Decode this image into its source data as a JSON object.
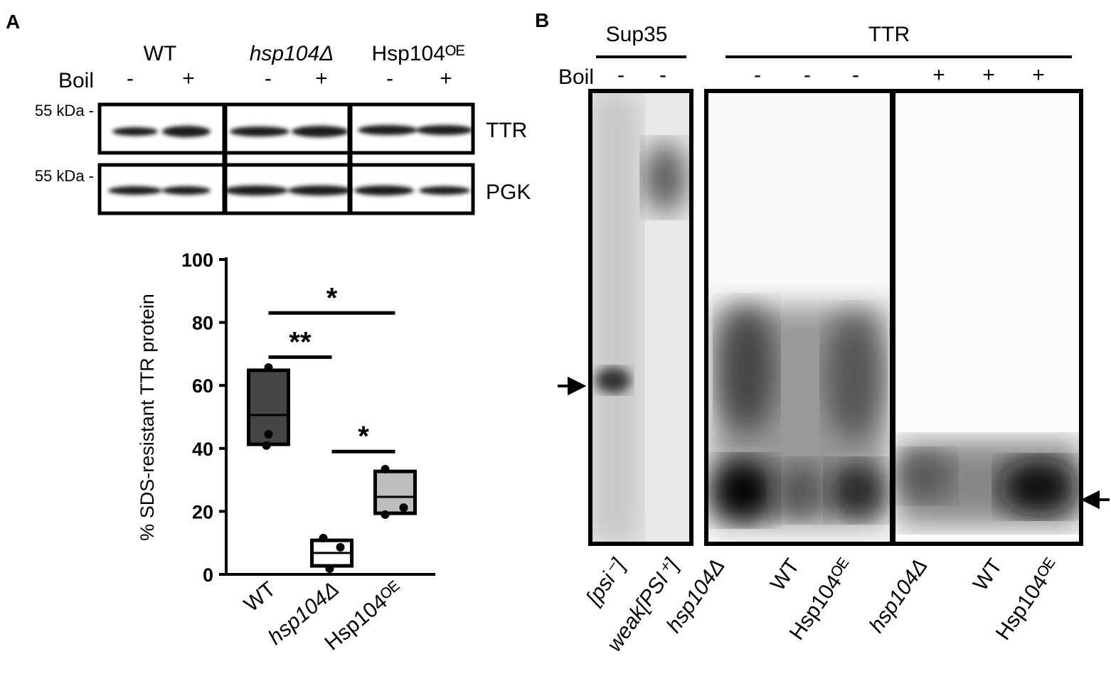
{
  "panel_a": {
    "label": "A",
    "strains": [
      "WT",
      "hsp104Δ",
      "Hsp104ᴼᴱ"
    ],
    "boil_label": "Boil",
    "boil_marks": [
      "-",
      "+",
      "-",
      "+",
      "-",
      "+"
    ],
    "markers": [
      "55 kDa -",
      "55 kDa -"
    ],
    "blots": [
      "TTR",
      "PGK"
    ]
  },
  "chart_data": {
    "type": "box",
    "ylabel": "% SDS-resistant TTR protein",
    "categories": [
      "WT",
      "hsp104Δ",
      "Hsp104ᴼᴱ"
    ],
    "colors": [
      "#454545",
      "#ffffff",
      "#bdbdbd"
    ],
    "boxes": [
      {
        "low": 41.3,
        "median": 50.6,
        "high": 64.8,
        "points": [
          65.7,
          44.5,
          40.9
        ]
      },
      {
        "low": 2.7,
        "median": 6.8,
        "high": 10.8,
        "points": [
          11.5,
          8.6,
          1.8
        ]
      },
      {
        "low": 19.4,
        "median": 24.6,
        "high": 32.7,
        "points": [
          33.4,
          21.2,
          19.0
        ]
      }
    ],
    "significance": [
      {
        "label": "*",
        "between": [
          "WT",
          "Hsp104ᴼᴱ"
        ],
        "level": 83
      },
      {
        "label": "**",
        "between": [
          "WT",
          "hsp104Δ"
        ],
        "level": 69
      },
      {
        "label": "*",
        "between": [
          "hsp104Δ",
          "Hsp104ᴼᴱ"
        ],
        "level": 39
      }
    ],
    "ylim": [
      0,
      100
    ],
    "yticks": [
      0,
      20,
      40,
      60,
      80,
      100
    ]
  },
  "panel_b": {
    "label": "B",
    "groups": [
      "Sup35",
      "TTR"
    ],
    "boil_label": "Boil",
    "boil_marks": [
      "-",
      "-",
      "-",
      "-",
      "-",
      "+",
      "+",
      "+"
    ],
    "lanes": [
      "[psi⁻]",
      "weak[PSI⁺]",
      "hsp104Δ",
      "WT",
      "Hsp104ᴼᴱ",
      "hsp104Δ",
      "WT",
      "Hsp104ᴼᴱ"
    ]
  }
}
